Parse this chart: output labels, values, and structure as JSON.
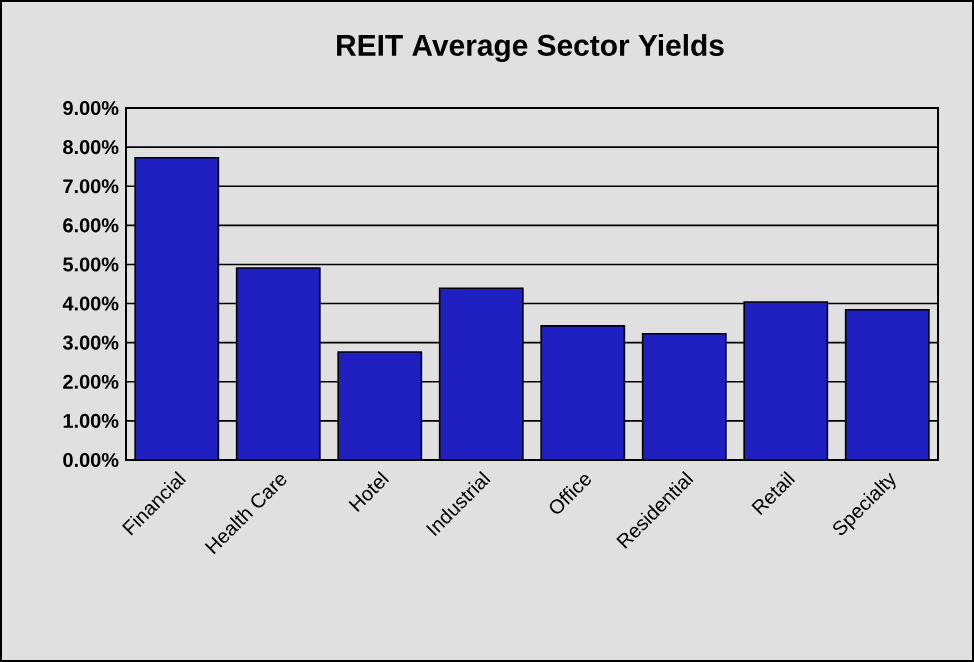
{
  "chart_data": {
    "type": "bar",
    "title": "REIT Average Sector Yields",
    "categories": [
      "Financial",
      "Health Care",
      "Hotel",
      "Industrial",
      "Office",
      "Residential",
      "Retail",
      "Specialty"
    ],
    "values": [
      7.73,
      4.91,
      2.76,
      4.39,
      3.43,
      3.23,
      4.04,
      3.84
    ],
    "color": "#2020c0",
    "ylim": [
      0,
      9
    ],
    "yticks": [
      {
        "value": 0,
        "label": "0.00%"
      },
      {
        "value": 1,
        "label": "1.00%"
      },
      {
        "value": 2,
        "label": "2.00%"
      },
      {
        "value": 3,
        "label": "3.00%"
      },
      {
        "value": 4,
        "label": "4.00%"
      },
      {
        "value": 5,
        "label": "5.00%"
      },
      {
        "value": 6,
        "label": "6.00%"
      },
      {
        "value": 7,
        "label": "7.00%"
      },
      {
        "value": 8,
        "label": "8.00%"
      },
      {
        "value": 9,
        "label": "9.00%"
      }
    ],
    "grid": "y"
  }
}
